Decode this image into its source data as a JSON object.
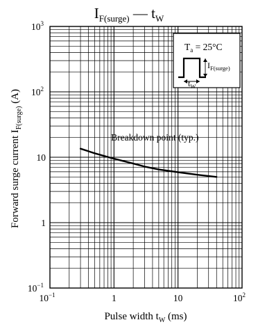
{
  "chart_data": {
    "type": "line",
    "title": {
      "main": "I",
      "sub1": "F(surge)",
      "dash": " — t",
      "sub2": "W"
    },
    "xlabel": {
      "main": "Pulse width  t",
      "sub": "W",
      "tail": "  (ms)"
    },
    "ylabel": {
      "main": "Forward surge current  I",
      "sub": "F(surge)",
      "tail": "  (A)"
    },
    "xscale": "log",
    "yscale": "log",
    "xlim": [
      0.1,
      100
    ],
    "ylim": [
      0.1,
      1000
    ],
    "grid": true,
    "x_ticks": [
      {
        "base": "10",
        "exp": "−1"
      },
      {
        "base": "1",
        "exp": ""
      },
      {
        "base": "10",
        "exp": ""
      },
      {
        "base": "10",
        "exp": "2"
      }
    ],
    "y_ticks": [
      {
        "base": "10",
        "exp": "−1"
      },
      {
        "base": "1",
        "exp": ""
      },
      {
        "base": "10",
        "exp": ""
      },
      {
        "base": "10",
        "exp": "2"
      },
      {
        "base": "10",
        "exp": "3"
      }
    ],
    "series": [
      {
        "x": [
          0.3,
          0.5,
          1,
          2,
          3,
          5,
          10,
          20,
          40
        ],
        "y": [
          13.5,
          11.5,
          9.5,
          8.0,
          7.2,
          6.5,
          5.9,
          5.4,
          5.0
        ]
      }
    ],
    "annotation": "Breakdown point (typ.)",
    "inset": {
      "temp_label": "T",
      "temp_sub": "a",
      "temp_value": " = 25°C",
      "current_label": "I",
      "current_sub": "F(surge)",
      "width_label": "t",
      "width_sub": "W"
    }
  }
}
